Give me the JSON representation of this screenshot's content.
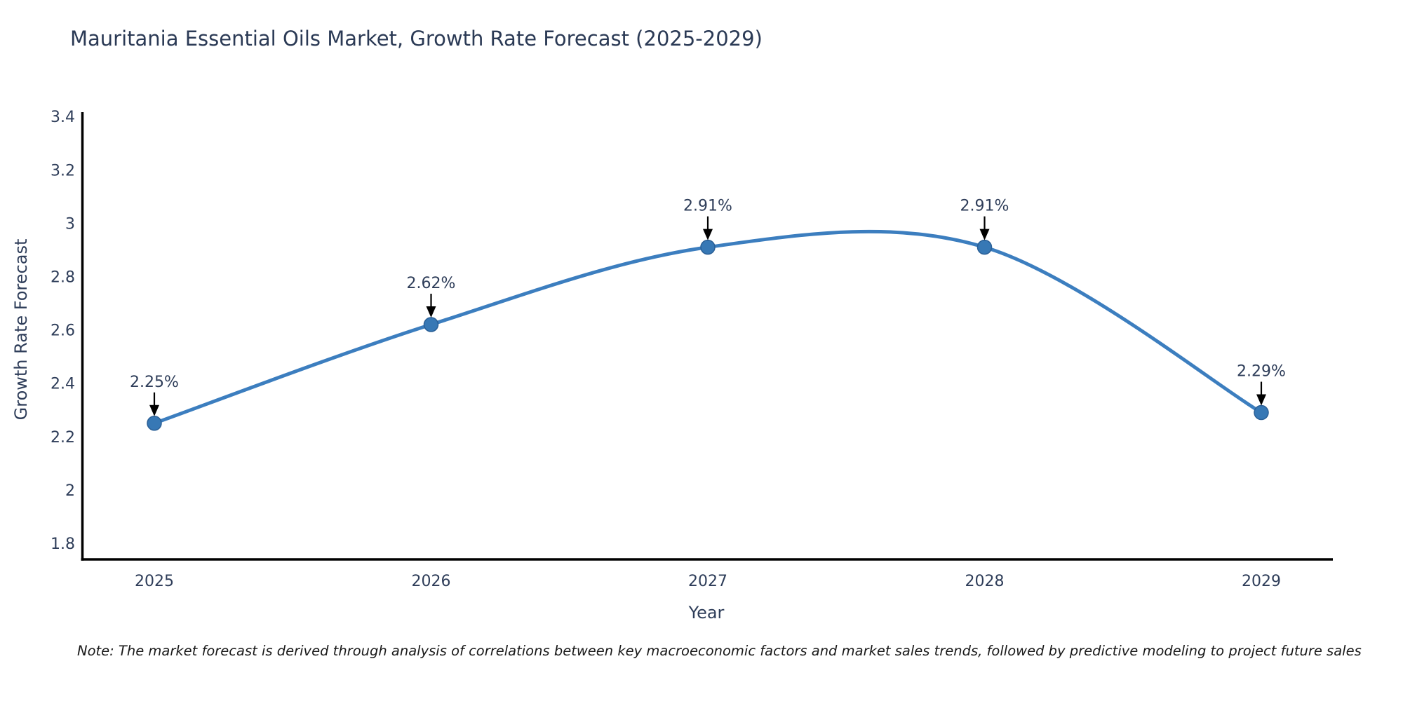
{
  "page": {
    "note": "Note: The market forecast is derived through analysis of correlations between key macroeconomic factors and market sales trends, followed by predictive modeling to project future sales"
  },
  "chart_data": {
    "type": "line",
    "title": "Mauritania Essential Oils Market, Growth Rate Forecast (2025-2029)",
    "xlabel": "Year",
    "ylabel": "Growth Rate Forecast",
    "x": [
      2025,
      2026,
      2027,
      2028,
      2029
    ],
    "series": [
      {
        "name": "Growth Rate Forecast",
        "values": [
          2.25,
          2.62,
          2.91,
          2.91,
          2.29
        ],
        "point_labels": [
          "2.25%",
          "2.62%",
          "2.91%",
          "2.91%",
          "2.29%"
        ]
      }
    ],
    "xtick_labels": [
      "2025",
      "2026",
      "2027",
      "2028",
      "2029"
    ],
    "ytick_values": [
      3.4,
      3.2,
      3.0,
      2.8,
      2.6,
      2.4,
      2.2,
      2.0,
      1.8
    ],
    "ytick_labels": [
      "3.4",
      "3.2",
      "3",
      "2.8",
      "2.6",
      "2.4",
      "2.2",
      "2",
      "1.8"
    ],
    "ylim": [
      1.74,
      3.42
    ],
    "grid": false,
    "smooth": true,
    "legend_position": "none",
    "annotation_style": "value labels with downward black arrows above each data point",
    "colors": {
      "line": "#3c7ebf",
      "marker_fill": "#3778b5",
      "marker_edge": "#2a5f96",
      "axis": "#000000",
      "arrow": "#000000",
      "chart_text": "#2e3d59",
      "note_text": "#1a1a1a",
      "background": "#ffffff"
    }
  }
}
